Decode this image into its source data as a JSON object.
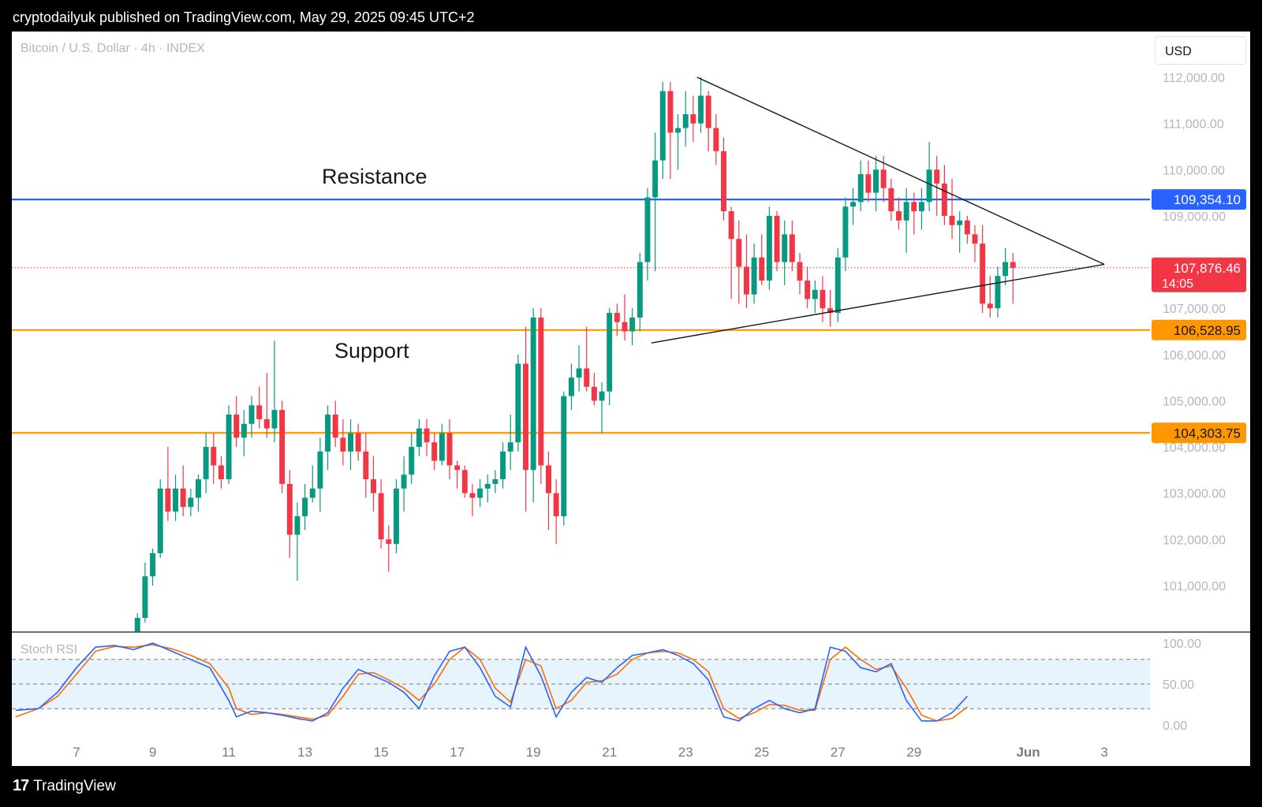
{
  "header": {
    "text": "cryptodailyuk published on TradingView.com, May 29, 2025 09:45 UTC+2"
  },
  "footer": {
    "logo": "17",
    "brand": "TradingView"
  },
  "chart": {
    "symbol": "Bitcoin / U.S. Dollar · 4h · INDEX",
    "currency": "USD",
    "annotations": {
      "resistance": "Resistance",
      "support": "Support"
    }
  },
  "rsi": {
    "label": "Stoch RSI"
  },
  "chart_data": {
    "type": "candlestick",
    "price_axis": {
      "ticks": [
        "112,000.00",
        "111,000.00",
        "110,000.00",
        "109,000.00",
        "107,000.00",
        "106,000.00",
        "105,000.00",
        "104,000.00",
        "103,000.00",
        "102,000.00",
        "101,000.00"
      ],
      "tick_values": [
        112000,
        111000,
        110000,
        109000,
        107000,
        106000,
        105000,
        104000,
        103000,
        102000,
        101000
      ],
      "range": [
        100000,
        112500
      ]
    },
    "date_axis": {
      "labels": [
        "7",
        "9",
        "11",
        "13",
        "15",
        "17",
        "19",
        "21",
        "23",
        "25",
        "27",
        "29",
        "Jun",
        "3"
      ],
      "day_positions": [
        7,
        9,
        11,
        13,
        15,
        17,
        19,
        21,
        23,
        25,
        27,
        29,
        32,
        34
      ],
      "range": [
        5.3,
        35.2
      ]
    },
    "levels": [
      {
        "name": "resistance",
        "value": 109354.1,
        "label": "109,354.10",
        "color": "#2962ff"
      },
      {
        "name": "support-upper",
        "value": 106528.95,
        "label": "106,528.95",
        "color": "#ff9800"
      },
      {
        "name": "support-lower",
        "value": 104303.75,
        "label": "104,303.75",
        "color": "#ff9800"
      }
    ],
    "last_price": {
      "value": 107876.46,
      "label": "107,876.46",
      "countdown": "14:05",
      "color": "#f23645"
    },
    "colors": {
      "up": "#089981",
      "down": "#f23645"
    },
    "ohlc_key": "t(day), open, high, low, close",
    "candles": [
      [
        8.6,
        100000,
        100400,
        99800,
        100300
      ],
      [
        8.8,
        100300,
        101500,
        100200,
        101200
      ],
      [
        9.0,
        101200,
        101800,
        101000,
        101700
      ],
      [
        9.2,
        101700,
        103300,
        101600,
        103100
      ],
      [
        9.4,
        103100,
        104000,
        102400,
        102600
      ],
      [
        9.6,
        102600,
        103400,
        102400,
        103100
      ],
      [
        9.8,
        103100,
        103600,
        102500,
        102700
      ],
      [
        10.0,
        102700,
        103100,
        102500,
        102900
      ],
      [
        10.2,
        102900,
        103400,
        102600,
        103300
      ],
      [
        10.4,
        103300,
        104300,
        103000,
        104000
      ],
      [
        10.6,
        104000,
        104300,
        103200,
        103600
      ],
      [
        10.8,
        103600,
        103800,
        103100,
        103300
      ],
      [
        11.0,
        103300,
        104900,
        103200,
        104700
      ],
      [
        11.2,
        104700,
        105100,
        104000,
        104200
      ],
      [
        11.4,
        104200,
        104800,
        103800,
        104500
      ],
      [
        11.6,
        104500,
        105100,
        104200,
        104900
      ],
      [
        11.8,
        104900,
        105300,
        104400,
        104600
      ],
      [
        12.0,
        104600,
        105600,
        104200,
        104400
      ],
      [
        12.2,
        104400,
        106300,
        104100,
        104800
      ],
      [
        12.4,
        104800,
        105000,
        103000,
        103200
      ],
      [
        12.6,
        103200,
        103500,
        101600,
        102100
      ],
      [
        12.8,
        102100,
        102800,
        101100,
        102500
      ],
      [
        13.0,
        102500,
        103200,
        102200,
        102900
      ],
      [
        13.2,
        102900,
        103600,
        102800,
        103100
      ],
      [
        13.4,
        103100,
        104200,
        102600,
        103900
      ],
      [
        13.6,
        103900,
        104900,
        103500,
        104700
      ],
      [
        13.8,
        104700,
        105000,
        104000,
        104200
      ],
      [
        14.0,
        104200,
        104600,
        103600,
        103900
      ],
      [
        14.2,
        103900,
        104600,
        103500,
        104300
      ],
      [
        14.4,
        104300,
        104500,
        103700,
        103900
      ],
      [
        14.6,
        103900,
        104300,
        102900,
        103300
      ],
      [
        14.8,
        103300,
        103800,
        102600,
        103000
      ],
      [
        15.0,
        103000,
        103300,
        101800,
        102000
      ],
      [
        15.2,
        102000,
        102300,
        101300,
        101900
      ],
      [
        15.4,
        101900,
        103300,
        101700,
        103100
      ],
      [
        15.6,
        103100,
        103800,
        102600,
        103400
      ],
      [
        15.8,
        103400,
        104300,
        103200,
        104000
      ],
      [
        16.0,
        104000,
        104600,
        103800,
        104400
      ],
      [
        16.2,
        104400,
        104600,
        103800,
        104100
      ],
      [
        16.4,
        104100,
        104300,
        103500,
        103700
      ],
      [
        16.6,
        103700,
        104500,
        103600,
        104300
      ],
      [
        16.8,
        104300,
        104600,
        103300,
        103600
      ],
      [
        17.0,
        103600,
        103700,
        103100,
        103500
      ],
      [
        17.2,
        103500,
        103600,
        102900,
        103000
      ],
      [
        17.4,
        103000,
        103200,
        102500,
        102900
      ],
      [
        17.6,
        102900,
        103300,
        102700,
        103100
      ],
      [
        17.8,
        103100,
        103400,
        102800,
        103200
      ],
      [
        18.0,
        103200,
        103500,
        103000,
        103300
      ],
      [
        18.2,
        103300,
        104100,
        103100,
        103900
      ],
      [
        18.4,
        103900,
        104700,
        103500,
        104100
      ],
      [
        18.6,
        104100,
        106000,
        103900,
        105800
      ],
      [
        18.8,
        105800,
        106600,
        102600,
        103500
      ],
      [
        19.0,
        103500,
        107000,
        102800,
        106800
      ],
      [
        19.2,
        106800,
        107000,
        103200,
        103600
      ],
      [
        19.4,
        103600,
        103900,
        102200,
        103000
      ],
      [
        19.6,
        103000,
        103300,
        101900,
        102500
      ],
      [
        19.8,
        102500,
        105200,
        102300,
        105100
      ],
      [
        20.0,
        105100,
        105800,
        104800,
        105500
      ],
      [
        20.2,
        105500,
        106200,
        105200,
        105700
      ],
      [
        20.4,
        105700,
        106600,
        105200,
        105300
      ],
      [
        20.6,
        105300,
        105600,
        104900,
        105000
      ],
      [
        20.8,
        105000,
        105400,
        104300,
        105200
      ],
      [
        21.0,
        105200,
        107000,
        104900,
        106900
      ],
      [
        21.2,
        106900,
        107100,
        106400,
        106700
      ],
      [
        21.4,
        106700,
        107300,
        106300,
        106500
      ],
      [
        21.6,
        106500,
        107000,
        106200,
        106800
      ],
      [
        21.8,
        106800,
        108200,
        106500,
        108000
      ],
      [
        22.0,
        108000,
        109600,
        107600,
        109400
      ],
      [
        22.2,
        109400,
        110800,
        107800,
        110200
      ],
      [
        22.4,
        110200,
        111900,
        109800,
        111700
      ],
      [
        22.6,
        111700,
        111900,
        109800,
        110800
      ],
      [
        22.8,
        110800,
        111200,
        110000,
        110900
      ],
      [
        23.0,
        110900,
        111700,
        110500,
        111200
      ],
      [
        23.2,
        111200,
        111600,
        110600,
        111000
      ],
      [
        23.4,
        111000,
        112000,
        110800,
        111600
      ],
      [
        23.6,
        111600,
        111700,
        110400,
        110900
      ],
      [
        23.8,
        110900,
        111200,
        110100,
        110400
      ],
      [
        24.0,
        110400,
        110700,
        108900,
        109100
      ],
      [
        24.2,
        109100,
        109200,
        107200,
        108500
      ],
      [
        24.4,
        108500,
        108900,
        107100,
        107900
      ],
      [
        24.6,
        107900,
        108600,
        107000,
        107300
      ],
      [
        24.8,
        107300,
        108400,
        107100,
        108100
      ],
      [
        25.0,
        108100,
        108600,
        107500,
        107600
      ],
      [
        25.2,
        107600,
        109200,
        107400,
        109000
      ],
      [
        25.4,
        109000,
        109100,
        107800,
        108000
      ],
      [
        25.6,
        108000,
        108900,
        107500,
        108600
      ],
      [
        25.8,
        108600,
        108900,
        107800,
        108000
      ],
      [
        26.0,
        108000,
        108200,
        107300,
        107600
      ],
      [
        26.2,
        107600,
        107900,
        107000,
        107200
      ],
      [
        26.4,
        107200,
        107600,
        106900,
        107400
      ],
      [
        26.6,
        107400,
        107700,
        106700,
        107000
      ],
      [
        26.8,
        107000,
        107400,
        106600,
        106900
      ],
      [
        27.0,
        106900,
        108300,
        106700,
        108100
      ],
      [
        27.2,
        108100,
        109400,
        107800,
        109200
      ],
      [
        27.4,
        109200,
        109600,
        108800,
        109300
      ],
      [
        27.6,
        109300,
        110200,
        109100,
        109900
      ],
      [
        27.8,
        109900,
        110200,
        109300,
        109500
      ],
      [
        28.0,
        109500,
        110300,
        109100,
        110000
      ],
      [
        28.2,
        110000,
        110300,
        109300,
        109600
      ],
      [
        28.4,
        109600,
        109800,
        108900,
        109100
      ],
      [
        28.6,
        109100,
        109400,
        108700,
        108900
      ],
      [
        28.8,
        108900,
        109600,
        108200,
        109300
      ],
      [
        29.0,
        109300,
        109500,
        108600,
        109100
      ],
      [
        29.2,
        109100,
        109600,
        108700,
        109300
      ],
      [
        29.4,
        109300,
        110600,
        109100,
        110000
      ],
      [
        29.6,
        110000,
        110300,
        109000,
        109700
      ],
      [
        29.8,
        109700,
        110100,
        108800,
        109000
      ],
      [
        30.0,
        109000,
        109800,
        108500,
        108800
      ],
      [
        30.2,
        108800,
        109100,
        108200,
        108900
      ],
      [
        30.4,
        108900,
        109000,
        108400,
        108600
      ],
      [
        30.6,
        108600,
        108800,
        108000,
        108400
      ],
      [
        30.8,
        108400,
        108800,
        106900,
        107100
      ],
      [
        31.0,
        107100,
        107700,
        106800,
        107000
      ],
      [
        31.2,
        107000,
        107900,
        106800,
        107700
      ],
      [
        31.4,
        107700,
        108300,
        107500,
        108000
      ],
      [
        31.6,
        108000,
        108200,
        107100,
        107876
      ]
    ],
    "triangle": {
      "upper": [
        [
          23.3,
          112000
        ],
        [
          34.0,
          107950
        ]
      ],
      "lower": [
        [
          22.1,
          106250
        ],
        [
          34.0,
          107950
        ]
      ]
    },
    "stoch_rsi": {
      "axis_ticks": [
        "100.00",
        "50.00",
        "0.00"
      ],
      "tick_values": [
        100,
        50,
        0
      ],
      "band": [
        20,
        80
      ],
      "range": [
        -5,
        105
      ],
      "k_points": [
        [
          5.4,
          18
        ],
        [
          6,
          20
        ],
        [
          6.5,
          40
        ],
        [
          7,
          70
        ],
        [
          7.5,
          95
        ],
        [
          8,
          97
        ],
        [
          8.5,
          92
        ],
        [
          9,
          100
        ],
        [
          9.5,
          90
        ],
        [
          10,
          80
        ],
        [
          10.5,
          70
        ],
        [
          11,
          30
        ],
        [
          11.2,
          10
        ],
        [
          11.6,
          17
        ],
        [
          12.0,
          15
        ],
        [
          12.4,
          12
        ],
        [
          12.8,
          8
        ],
        [
          13.2,
          5
        ],
        [
          13.6,
          15
        ],
        [
          14.0,
          45
        ],
        [
          14.4,
          68
        ],
        [
          14.8,
          60
        ],
        [
          15.2,
          52
        ],
        [
          15.6,
          40
        ],
        [
          16.0,
          20
        ],
        [
          16.4,
          60
        ],
        [
          16.8,
          90
        ],
        [
          17.2,
          95
        ],
        [
          17.6,
          70
        ],
        [
          18.0,
          35
        ],
        [
          18.4,
          22
        ],
        [
          18.8,
          95
        ],
        [
          19.2,
          60
        ],
        [
          19.6,
          10
        ],
        [
          20.0,
          40
        ],
        [
          20.4,
          58
        ],
        [
          20.8,
          52
        ],
        [
          21.2,
          70
        ],
        [
          21.6,
          85
        ],
        [
          22.0,
          88
        ],
        [
          22.4,
          92
        ],
        [
          22.8,
          85
        ],
        [
          23.2,
          75
        ],
        [
          23.6,
          55
        ],
        [
          24.0,
          10
        ],
        [
          24.4,
          5
        ],
        [
          24.8,
          20
        ],
        [
          25.2,
          30
        ],
        [
          25.6,
          20
        ],
        [
          26.0,
          15
        ],
        [
          26.4,
          20
        ],
        [
          26.8,
          95
        ],
        [
          27.2,
          90
        ],
        [
          27.6,
          70
        ],
        [
          28.0,
          65
        ],
        [
          28.4,
          75
        ],
        [
          28.8,
          30
        ],
        [
          29.2,
          5
        ],
        [
          29.6,
          5
        ],
        [
          30.0,
          15
        ],
        [
          30.4,
          35
        ]
      ],
      "d_points": [
        [
          5.4,
          10
        ],
        [
          6,
          20
        ],
        [
          6.5,
          35
        ],
        [
          7,
          62
        ],
        [
          7.5,
          90
        ],
        [
          8,
          96
        ],
        [
          8.5,
          95
        ],
        [
          9,
          98
        ],
        [
          9.5,
          93
        ],
        [
          10,
          85
        ],
        [
          10.5,
          75
        ],
        [
          11,
          45
        ],
        [
          11.2,
          20
        ],
        [
          11.6,
          13
        ],
        [
          12.0,
          15
        ],
        [
          12.4,
          13
        ],
        [
          12.8,
          10
        ],
        [
          13.2,
          7
        ],
        [
          13.6,
          12
        ],
        [
          14.0,
          35
        ],
        [
          14.4,
          62
        ],
        [
          14.8,
          64
        ],
        [
          15.2,
          55
        ],
        [
          15.6,
          45
        ],
        [
          16.0,
          30
        ],
        [
          16.4,
          50
        ],
        [
          16.8,
          80
        ],
        [
          17.2,
          95
        ],
        [
          17.6,
          80
        ],
        [
          18.0,
          45
        ],
        [
          18.4,
          28
        ],
        [
          18.8,
          80
        ],
        [
          19.2,
          72
        ],
        [
          19.6,
          20
        ],
        [
          20.0,
          30
        ],
        [
          20.4,
          52
        ],
        [
          20.8,
          54
        ],
        [
          21.2,
          62
        ],
        [
          21.6,
          80
        ],
        [
          22.0,
          88
        ],
        [
          22.4,
          90
        ],
        [
          22.8,
          88
        ],
        [
          23.2,
          80
        ],
        [
          23.6,
          65
        ],
        [
          24.0,
          20
        ],
        [
          24.4,
          8
        ],
        [
          24.8,
          15
        ],
        [
          25.2,
          25
        ],
        [
          25.6,
          24
        ],
        [
          26.0,
          18
        ],
        [
          26.4,
          18
        ],
        [
          26.8,
          80
        ],
        [
          27.2,
          95
        ],
        [
          27.6,
          80
        ],
        [
          28.0,
          68
        ],
        [
          28.4,
          72
        ],
        [
          28.8,
          45
        ],
        [
          29.2,
          12
        ],
        [
          29.6,
          5
        ],
        [
          30.0,
          8
        ],
        [
          30.4,
          22
        ]
      ]
    }
  }
}
